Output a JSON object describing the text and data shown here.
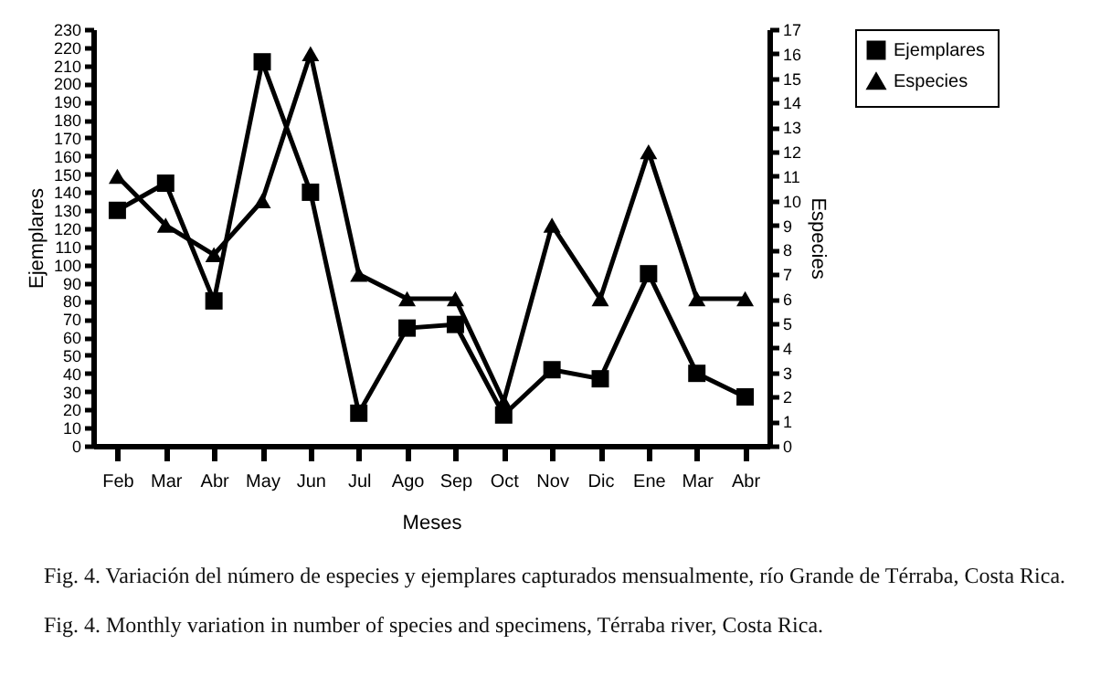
{
  "chart_data": {
    "type": "line",
    "xlabel": "Meses",
    "ylabel": "Ejemplares",
    "y2label": "Especies",
    "categories": [
      "Feb",
      "Mar",
      "Abr",
      "May",
      "Jun",
      "Jul",
      "Ago",
      "Sep",
      "Oct",
      "Nov",
      "Dic",
      "Ene",
      "Mar",
      "Abr"
    ],
    "series": [
      {
        "name": "Ejemplares",
        "color": "#000000",
        "marker": "square",
        "axis": "y",
        "values": [
          130,
          145,
          80,
          212,
          140,
          18,
          65,
          67,
          17,
          42,
          37,
          95,
          40,
          27
        ]
      },
      {
        "name": "Especies",
        "color": "#000000",
        "marker": "triangle",
        "axis": "y2",
        "values": [
          11,
          9,
          7.8,
          10,
          16,
          7,
          6,
          6,
          1.8,
          9,
          6,
          12,
          6,
          6
        ]
      }
    ],
    "ylim": [
      0,
      230
    ],
    "yticks": [
      0,
      10,
      20,
      30,
      40,
      50,
      60,
      70,
      80,
      90,
      100,
      110,
      120,
      130,
      140,
      150,
      160,
      170,
      180,
      190,
      200,
      210,
      220,
      230
    ],
    "y2lim": [
      0,
      17
    ],
    "y2ticks": [
      0,
      1,
      2,
      3,
      4,
      5,
      6,
      7,
      8,
      9,
      10,
      11,
      12,
      13,
      14,
      15,
      16,
      17
    ],
    "legend": "right",
    "line_style": "solid",
    "annotations": [
      "Fig. 4. Variación del número de especies y ejemplares capturados mensualmente, río Grande de Térraba, Costa Rica.",
      "Fig. 4. Monthly variation in number of species and specimens, Térraba river, Costa Rica."
    ]
  }
}
